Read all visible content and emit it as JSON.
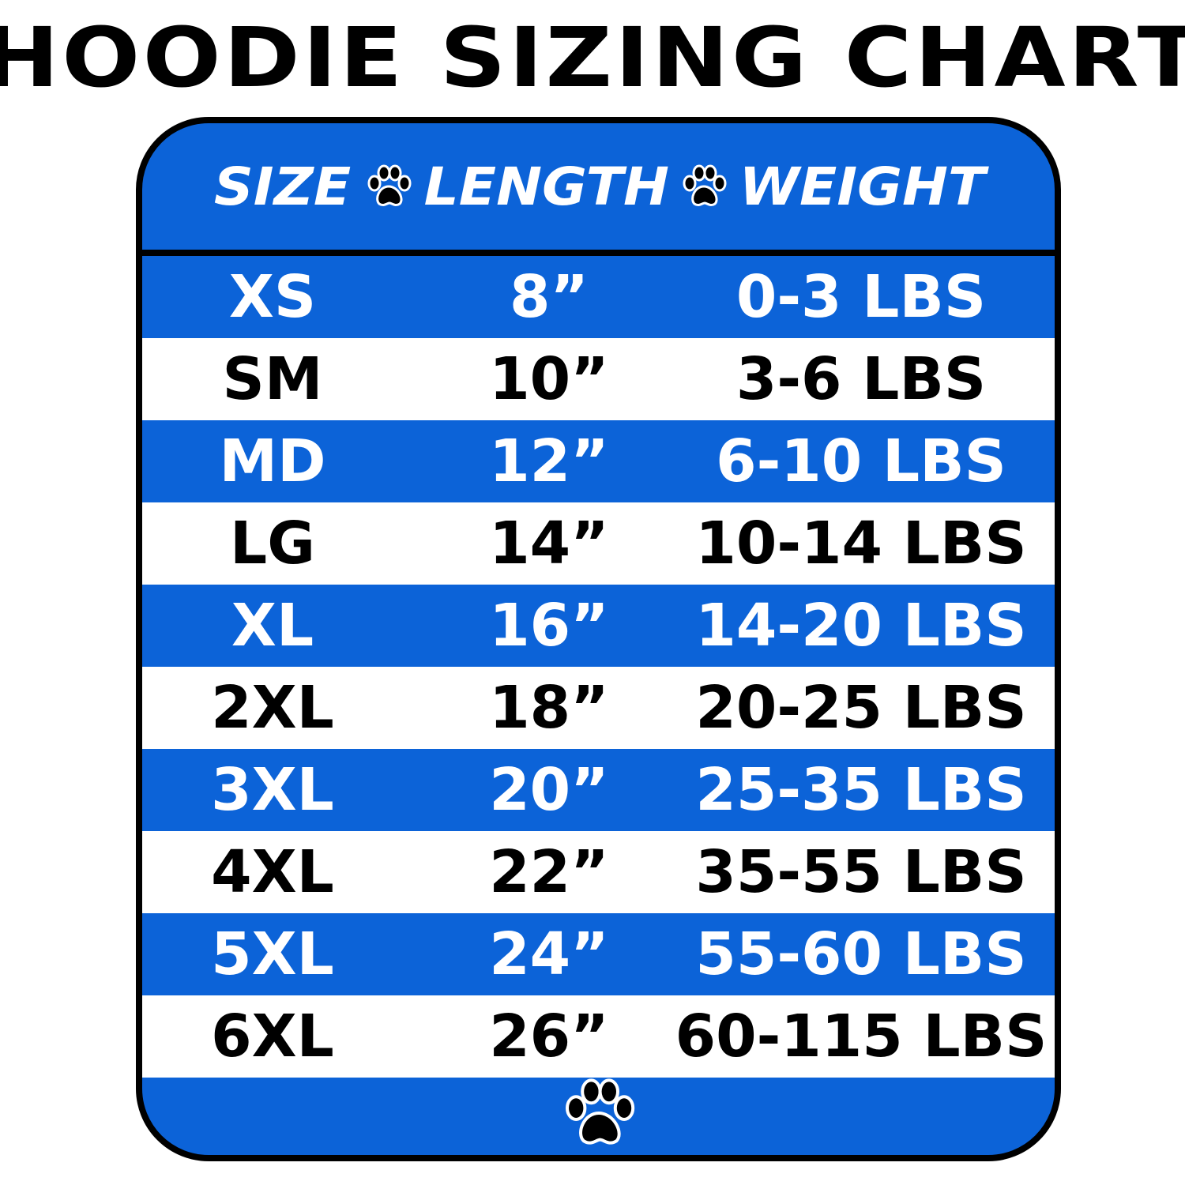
{
  "title": "HOODIE SIZING CHART",
  "colors": {
    "accent": "#0c63d8",
    "text_dark": "#000000",
    "text_light": "#ffffff"
  },
  "header": {
    "size": "SIZE",
    "length": "LENGTH",
    "weight": "WEIGHT",
    "separator_icon": "paw-icon"
  },
  "rows": [
    {
      "size": "XS",
      "length": "8”",
      "weight": "0-3 LBS"
    },
    {
      "size": "SM",
      "length": "10”",
      "weight": "3-6 LBS"
    },
    {
      "size": "MD",
      "length": "12”",
      "weight": "6-10 LBS"
    },
    {
      "size": "LG",
      "length": "14”",
      "weight": "10-14 LBS"
    },
    {
      "size": "XL",
      "length": "16”",
      "weight": "14-20 LBS"
    },
    {
      "size": "2XL",
      "length": "18”",
      "weight": "20-25 LBS"
    },
    {
      "size": "3XL",
      "length": "20”",
      "weight": "25-35 LBS"
    },
    {
      "size": "4XL",
      "length": "22”",
      "weight": "35-55 LBS"
    },
    {
      "size": "5XL",
      "length": "24”",
      "weight": "55-60 LBS"
    },
    {
      "size": "6XL",
      "length": "26”",
      "weight": "60-115 LBS"
    }
  ],
  "footer": {
    "icon": "paw-icon"
  }
}
